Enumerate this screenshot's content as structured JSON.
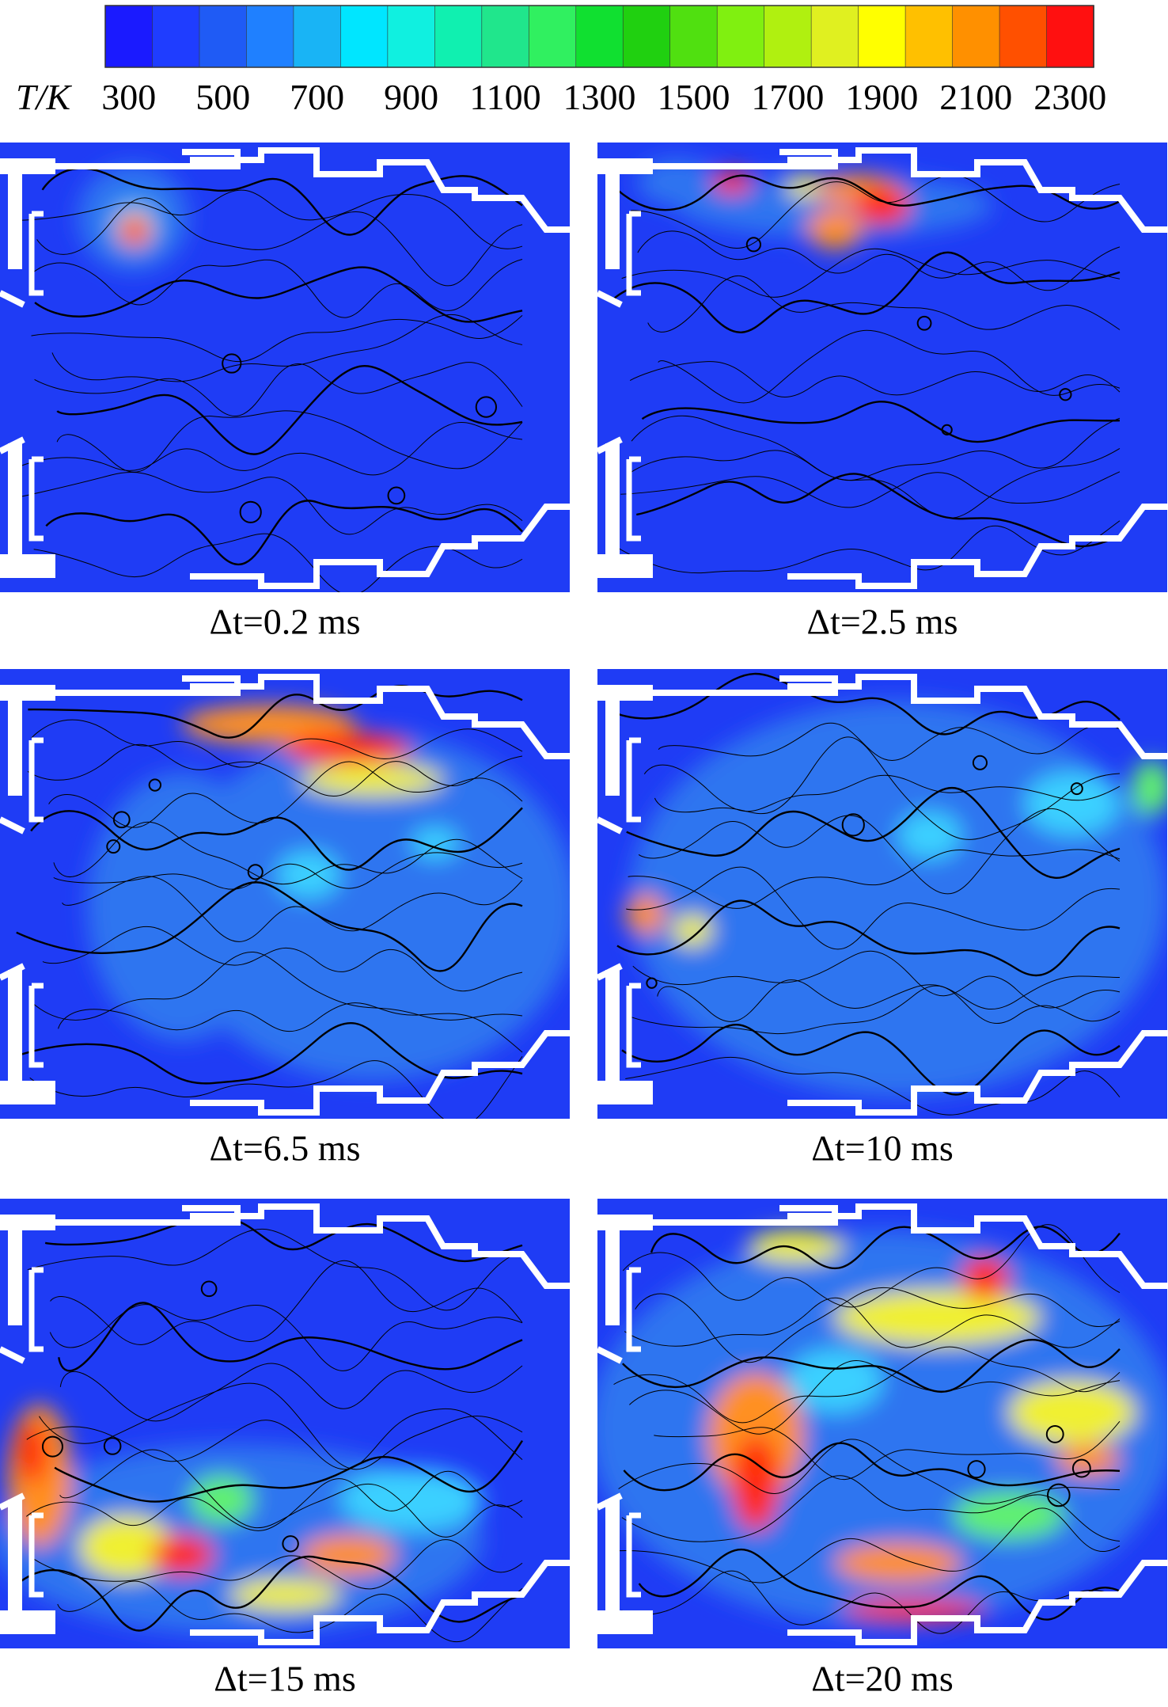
{
  "colorbar": {
    "label": "T/K",
    "range": [
      250,
      2350
    ],
    "ticks": [
      300,
      500,
      700,
      900,
      1100,
      1300,
      1500,
      1700,
      1900,
      2100,
      2300
    ],
    "colors": [
      "#1a1aff",
      "#1f3dff",
      "#1f5bf5",
      "#1f80ff",
      "#19b4f5",
      "#00e6ff",
      "#10f0e0",
      "#10f0b0",
      "#20e68c",
      "#30f060",
      "#10e030",
      "#20d010",
      "#50e010",
      "#80f010",
      "#b0f010",
      "#e0f020",
      "#ffff00",
      "#ffc000",
      "#ff9000",
      "#ff5000",
      "#ff1010"
    ]
  },
  "panels": [
    {
      "caption": "Δt=0.2 ms"
    },
    {
      "caption": "Δt=2.5 ms"
    },
    {
      "caption": "Δt=6.5 ms"
    },
    {
      "caption": "Δt=10 ms"
    },
    {
      "caption": "Δt=15 ms"
    },
    {
      "caption": "Δt=20 ms"
    }
  ]
}
